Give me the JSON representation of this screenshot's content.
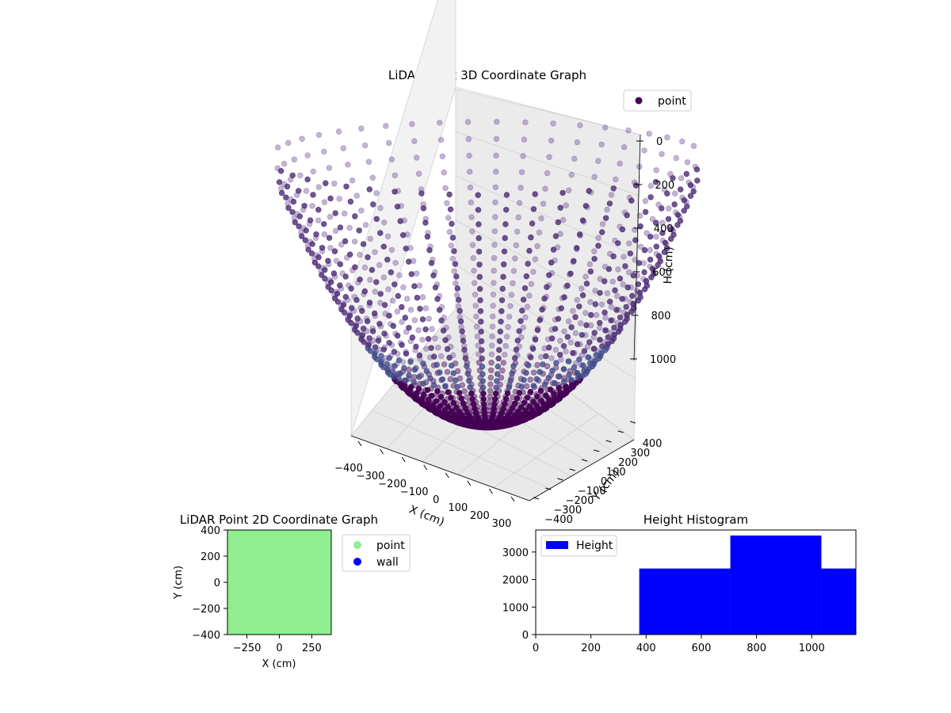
{
  "chart_data": [
    {
      "type": "scatter",
      "projection": "3d",
      "title": "LiDAR Point 3D Coordinate Graph",
      "xlabel": "X (cm)",
      "ylabel": "Y (cm)",
      "zlabel": "H (cm)",
      "x_ticks": [
        "−400",
        "−300",
        "−200",
        "−100",
        "0",
        "100",
        "200",
        "300"
      ],
      "y_ticks": [
        "−400",
        "−300",
        "−200",
        "−100",
        "0",
        "100",
        "200",
        "300",
        "400"
      ],
      "z_ticks": [
        "0",
        "200",
        "400",
        "600",
        "800",
        "1000"
      ],
      "zlim": [
        1000,
        0
      ],
      "xlim": [
        -400,
        400
      ],
      "ylim": [
        -400,
        400
      ],
      "colormap": "viridis-dark-purple",
      "point_color": "#440154",
      "series": [
        {
          "name": "point",
          "shape": "bowl of radial scan lines",
          "description_points": {
            "radial_lines": 48,
            "points_per_line": 34,
            "rim_radius_cm": 400,
            "bottom_height_cm": 1150,
            "top_height_cm": 0
          }
        }
      ],
      "legend": {
        "position": "top-right",
        "entries": [
          "point"
        ]
      }
    },
    {
      "type": "scatter",
      "title": "LiDAR Point 2D Coordinate Graph",
      "xlabel": "X (cm)",
      "ylabel": "Y (cm)",
      "xlim": [
        -400,
        400
      ],
      "ylim": [
        -400,
        400
      ],
      "x_ticks": [
        "−250",
        "0",
        "250"
      ],
      "x_tick_values": [
        -250,
        0,
        250
      ],
      "y_ticks": [
        "−400",
        "−200",
        "0",
        "200",
        "400"
      ],
      "y_tick_values": [
        -400,
        -200,
        0,
        200,
        400
      ],
      "series": [
        {
          "name": "point",
          "color": "#90ee90",
          "fill": "full area -400..400"
        },
        {
          "name": "wall",
          "color": "#0000ff"
        }
      ],
      "legend": {
        "position": "outside-right",
        "entries": [
          "point",
          "wall"
        ]
      }
    },
    {
      "type": "bar",
      "subtype": "histogram",
      "title": "Height Histogram",
      "xlim": [
        0,
        1160
      ],
      "ylim": [
        0,
        3800
      ],
      "x_ticks": [
        "0",
        "200",
        "400",
        "600",
        "800",
        "1000"
      ],
      "x_tick_values": [
        0,
        200,
        400,
        600,
        800,
        1000
      ],
      "y_ticks": [
        "0",
        "1000",
        "2000",
        "3000"
      ],
      "y_tick_values": [
        0,
        1000,
        2000,
        3000
      ],
      "bins": [
        {
          "start": 375,
          "end": 705,
          "count": 2400
        },
        {
          "start": 705,
          "end": 1035,
          "count": 3600
        },
        {
          "start": 1035,
          "end": 1160,
          "count": 2400
        }
      ],
      "series": [
        {
          "name": "Height",
          "color": "#0000ff"
        }
      ],
      "legend": {
        "position": "top-left",
        "entries": [
          "Height"
        ]
      }
    }
  ]
}
